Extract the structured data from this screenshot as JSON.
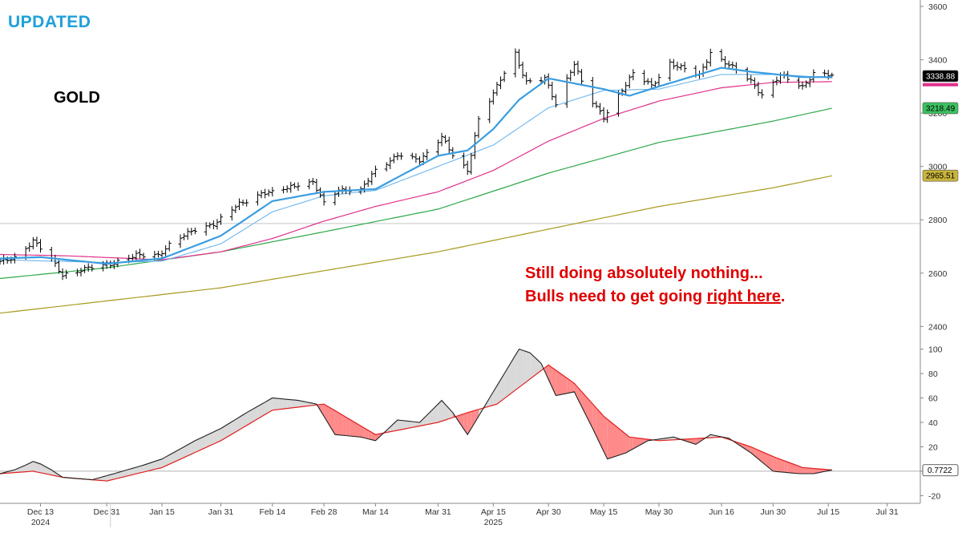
{
  "header": {
    "badge": "UPDATED",
    "symbol": "GOLD"
  },
  "annotation": {
    "line1": "Still doing absolutely nothing...",
    "line2_prefix": "Bulls need to get going ",
    "line2_emphasis": "right here",
    "line2_suffix": "."
  },
  "colors": {
    "price_bars": "#000000",
    "ma_fast": "#3a9de0",
    "ma_medium": "#6eb6ec",
    "ma_50": "#e0308a",
    "ma_100": "#2ea84a",
    "ma_200": "#a69a1e",
    "oscillator": "#222222",
    "signal": "#e02020",
    "fill_bull": "#d9d9d9",
    "fill_bear": "#ff8a8a",
    "annotation": "#e00000",
    "badge": "#1fa0d8"
  },
  "chart_data": [
    {
      "type": "ohlc",
      "name": "price",
      "ylim": [
        2350,
        3600
      ],
      "yticks": [
        2400,
        2600,
        2800,
        3000,
        3200,
        3400,
        3600
      ],
      "x_ticks": [
        "Dec 13",
        "Dec 31",
        "Jan 15",
        "Jan 31",
        "Feb 14",
        "Feb 28",
        "Mar 14",
        "Mar 31",
        "Apr 15",
        "Apr 30",
        "May 15",
        "May 30",
        "Jun 16",
        "Jun 30",
        "Jul 15",
        "Jul 31"
      ],
      "x_years": [
        "2024",
        "2025"
      ],
      "date_range": [
        "2024-12-02",
        "2025-08-09"
      ],
      "reference_line": 2786,
      "close_anchors": [
        [
          "2024-12-02",
          2640
        ],
        [
          "2024-12-06",
          2660
        ],
        [
          "2024-12-11",
          2720
        ],
        [
          "2024-12-16",
          2650
        ],
        [
          "2024-12-19",
          2595
        ],
        [
          "2024-12-27",
          2620
        ],
        [
          "2025-01-02",
          2640
        ],
        [
          "2025-01-08",
          2665
        ],
        [
          "2025-01-14",
          2670
        ],
        [
          "2025-01-17",
          2705
        ],
        [
          "2025-01-24",
          2765
        ],
        [
          "2025-01-30",
          2790
        ],
        [
          "2025-02-05",
          2860
        ],
        [
          "2025-02-11",
          2900
        ],
        [
          "2025-02-14",
          2900
        ],
        [
          "2025-02-21",
          2935
        ],
        [
          "2025-02-25",
          2940
        ],
        [
          "2025-02-28",
          2860
        ],
        [
          "2025-03-04",
          2915
        ],
        [
          "2025-03-10",
          2910
        ],
        [
          "2025-03-14",
          2985
        ],
        [
          "2025-03-20",
          3045
        ],
        [
          "2025-03-26",
          3020
        ],
        [
          "2025-04-01",
          3115
        ],
        [
          "2025-04-04",
          3040
        ],
        [
          "2025-04-08",
          2980
        ],
        [
          "2025-04-11",
          3180
        ],
        [
          "2025-04-16",
          3300
        ],
        [
          "2025-04-21",
          3420
        ],
        [
          "2025-04-22",
          3380
        ],
        [
          "2025-04-24",
          3320
        ],
        [
          "2025-04-29",
          3330
        ],
        [
          "2025-05-02",
          3230
        ],
        [
          "2025-05-07",
          3390
        ],
        [
          "2025-05-09",
          3320
        ],
        [
          "2025-05-12",
          3240
        ],
        [
          "2025-05-15",
          3180
        ],
        [
          "2025-05-20",
          3290
        ],
        [
          "2025-05-23",
          3350
        ],
        [
          "2025-05-28",
          3300
        ],
        [
          "2025-06-02",
          3390
        ],
        [
          "2025-06-05",
          3370
        ],
        [
          "2025-06-10",
          3340
        ],
        [
          "2025-06-13",
          3430
        ],
        [
          "2025-06-18",
          3380
        ],
        [
          "2025-06-24",
          3320
        ],
        [
          "2025-06-27",
          3270
        ],
        [
          "2025-07-02",
          3340
        ],
        [
          "2025-07-08",
          3300
        ],
        [
          "2025-07-11",
          3350
        ],
        [
          "2025-07-16",
          3339
        ]
      ],
      "moving_averages": [
        {
          "name": "ma_fast",
          "last": 3338.88,
          "anchors": [
            [
              "2024-12-02",
              2655
            ],
            [
              "2024-12-13",
              2660
            ],
            [
              "2024-12-31",
              2635
            ],
            [
              "2025-01-15",
              2655
            ],
            [
              "2025-01-31",
              2740
            ],
            [
              "2025-02-14",
              2870
            ],
            [
              "2025-02-28",
              2905
            ],
            [
              "2025-03-14",
              2915
            ],
            [
              "2025-03-31",
              3040
            ],
            [
              "2025-04-08",
              3060
            ],
            [
              "2025-04-15",
              3140
            ],
            [
              "2025-04-22",
              3250
            ],
            [
              "2025-04-30",
              3330
            ],
            [
              "2025-05-15",
              3290
            ],
            [
              "2025-05-22",
              3265
            ],
            [
              "2025-05-30",
              3300
            ],
            [
              "2025-06-16",
              3370
            ],
            [
              "2025-06-24",
              3355
            ],
            [
              "2025-07-08",
              3335
            ],
            [
              "2025-07-16",
              3335
            ]
          ]
        },
        {
          "name": "ma_medium",
          "anchors": [
            [
              "2024-12-02",
              2650
            ],
            [
              "2024-12-31",
              2640
            ],
            [
              "2025-01-15",
              2645
            ],
            [
              "2025-01-31",
              2710
            ],
            [
              "2025-02-14",
              2830
            ],
            [
              "2025-02-28",
              2890
            ],
            [
              "2025-03-14",
              2910
            ],
            [
              "2025-03-31",
              3000
            ],
            [
              "2025-04-15",
              3080
            ],
            [
              "2025-04-30",
              3220
            ],
            [
              "2025-05-15",
              3285
            ],
            [
              "2025-05-30",
              3290
            ],
            [
              "2025-06-16",
              3345
            ],
            [
              "2025-07-01",
              3345
            ],
            [
              "2025-07-16",
              3332
            ]
          ]
        },
        {
          "name": "ma_50",
          "last": 3318.5,
          "anchors": [
            [
              "2024-12-02",
              2670
            ],
            [
              "2024-12-20",
              2665
            ],
            [
              "2025-01-15",
              2650
            ],
            [
              "2025-01-31",
              2680
            ],
            [
              "2025-02-14",
              2730
            ],
            [
              "2025-02-28",
              2795
            ],
            [
              "2025-03-14",
              2850
            ],
            [
              "2025-03-31",
              2905
            ],
            [
              "2025-04-15",
              2985
            ],
            [
              "2025-04-30",
              3095
            ],
            [
              "2025-05-15",
              3180
            ],
            [
              "2025-05-30",
              3245
            ],
            [
              "2025-06-16",
              3295
            ],
            [
              "2025-06-30",
              3315
            ],
            [
              "2025-07-16",
              3318
            ]
          ]
        },
        {
          "name": "ma_100",
          "last": 3218.49,
          "anchors": [
            [
              "2024-12-02",
              2580
            ],
            [
              "2024-12-31",
              2620
            ],
            [
              "2025-01-31",
              2680
            ],
            [
              "2025-02-28",
              2755
            ],
            [
              "2025-03-31",
              2840
            ],
            [
              "2025-04-30",
              2975
            ],
            [
              "2025-05-30",
              3090
            ],
            [
              "2025-06-30",
              3170
            ],
            [
              "2025-07-16",
              3218
            ]
          ]
        },
        {
          "name": "ma_200",
          "last": 2965.51,
          "anchors": [
            [
              "2024-12-02",
              2450
            ],
            [
              "2025-01-31",
              2545
            ],
            [
              "2025-03-31",
              2680
            ],
            [
              "2025-04-30",
              2765
            ],
            [
              "2025-05-30",
              2850
            ],
            [
              "2025-06-30",
              2920
            ],
            [
              "2025-07-16",
              2965
            ]
          ]
        }
      ],
      "price_labels": [
        {
          "text": "3338.88",
          "value": 3338.88,
          "color": "#ffffff",
          "bg": "#000000"
        },
        {
          "text": "3218.49",
          "value": 3218.49,
          "color": "#000000",
          "bg": "#3cc060"
        },
        {
          "text": "2965.51",
          "value": 2965.51,
          "color": "#000000",
          "bg": "#c8b43c"
        }
      ]
    },
    {
      "type": "line",
      "name": "oscillator",
      "ylim": [
        -25,
        105
      ],
      "yticks": [
        -20,
        0,
        20,
        40,
        60,
        80,
        100
      ],
      "last_value": 0.7722,
      "last_label": "0.7722",
      "series": [
        {
          "name": "oscillator",
          "anchors": [
            [
              "2024-12-02",
              -2
            ],
            [
              "2024-12-07",
              2
            ],
            [
              "2024-12-11",
              8
            ],
            [
              "2024-12-14",
              5
            ],
            [
              "2024-12-19",
              -5
            ],
            [
              "2024-12-27",
              -7
            ],
            [
              "2025-01-02",
              -2
            ],
            [
              "2025-01-10",
              5
            ],
            [
              "2025-01-15",
              10
            ],
            [
              "2025-01-24",
              25
            ],
            [
              "2025-01-31",
              35
            ],
            [
              "2025-02-07",
              48
            ],
            [
              "2025-02-14",
              60
            ],
            [
              "2025-02-21",
              58
            ],
            [
              "2025-02-26",
              55
            ],
            [
              "2025-03-03",
              30
            ],
            [
              "2025-03-10",
              28
            ],
            [
              "2025-03-14",
              25
            ],
            [
              "2025-03-20",
              42
            ],
            [
              "2025-03-26",
              40
            ],
            [
              "2025-04-01",
              58
            ],
            [
              "2025-04-04",
              48
            ],
            [
              "2025-04-08",
              30
            ],
            [
              "2025-04-11",
              45
            ],
            [
              "2025-04-16",
              70
            ],
            [
              "2025-04-22",
              100
            ],
            [
              "2025-04-27",
              95
            ],
            [
              "2025-05-02",
              62
            ],
            [
              "2025-05-07",
              65
            ],
            [
              "2025-05-12",
              35
            ],
            [
              "2025-05-16",
              10
            ],
            [
              "2025-05-21",
              15
            ],
            [
              "2025-05-27",
              25
            ],
            [
              "2025-06-03",
              28
            ],
            [
              "2025-06-09",
              22
            ],
            [
              "2025-06-13",
              30
            ],
            [
              "2025-06-18",
              27
            ],
            [
              "2025-06-24",
              15
            ],
            [
              "2025-06-30",
              0
            ],
            [
              "2025-07-07",
              -2
            ],
            [
              "2025-07-11",
              -2
            ],
            [
              "2025-07-16",
              1
            ]
          ]
        },
        {
          "name": "signal",
          "anchors": [
            [
              "2024-12-02",
              -2
            ],
            [
              "2024-12-11",
              0
            ],
            [
              "2024-12-19",
              -5
            ],
            [
              "2024-12-31",
              -8
            ],
            [
              "2025-01-15",
              3
            ],
            [
              "2025-01-31",
              25
            ],
            [
              "2025-02-14",
              50
            ],
            [
              "2025-02-28",
              55
            ],
            [
              "2025-03-14",
              30
            ],
            [
              "2025-03-31",
              40
            ],
            [
              "2025-04-08",
              48
            ],
            [
              "2025-04-16",
              55
            ],
            [
              "2025-04-30",
              87
            ],
            [
              "2025-05-07",
              72
            ],
            [
              "2025-05-15",
              45
            ],
            [
              "2025-05-22",
              28
            ],
            [
              "2025-05-30",
              25
            ],
            [
              "2025-06-16",
              28
            ],
            [
              "2025-06-24",
              20
            ],
            [
              "2025-06-30",
              12
            ],
            [
              "2025-07-08",
              3
            ],
            [
              "2025-07-16",
              1
            ]
          ]
        }
      ]
    }
  ]
}
